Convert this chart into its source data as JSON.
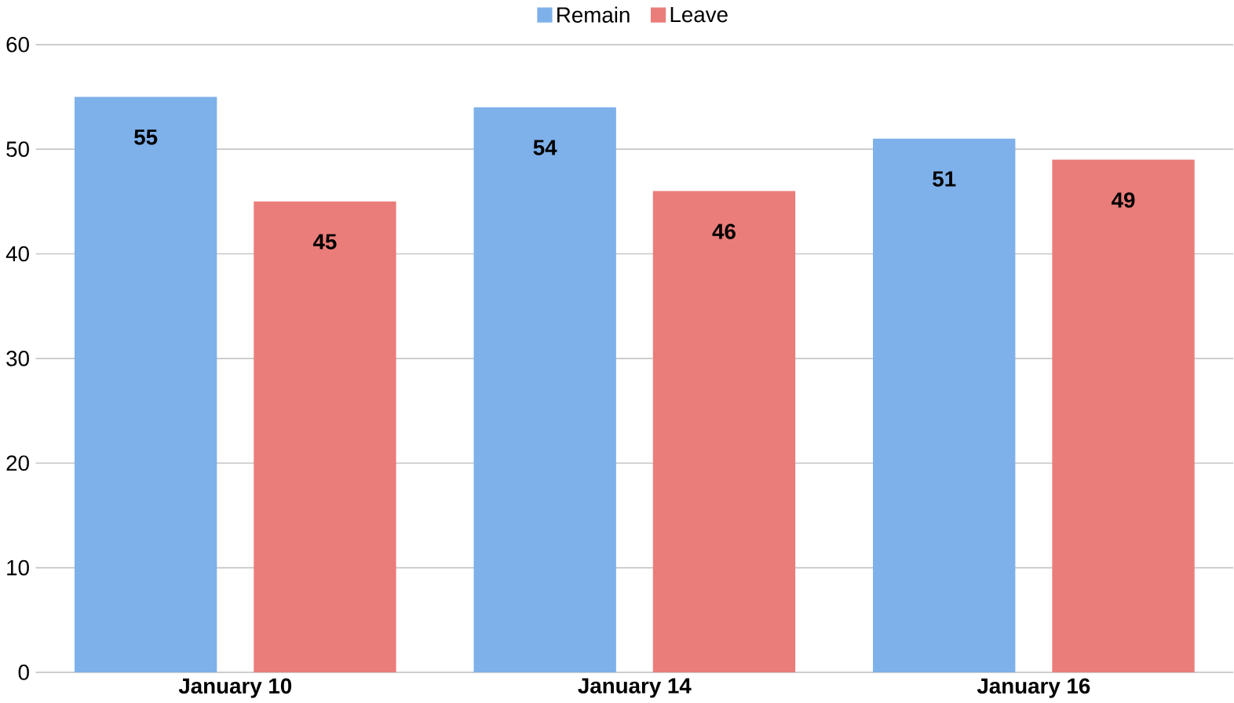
{
  "chart_data": {
    "type": "bar",
    "categories": [
      "January 10",
      "January 14",
      "January 16"
    ],
    "series": [
      {
        "name": "Remain",
        "color": "#7eb0ea",
        "values": [
          55,
          54,
          51
        ]
      },
      {
        "name": "Leave",
        "color": "#ea7d7a",
        "values": [
          45,
          46,
          49
        ]
      }
    ],
    "ylim": [
      0,
      60
    ],
    "yticks": [
      0,
      10,
      20,
      30,
      40,
      50,
      60
    ],
    "grid": "y",
    "legend": "top",
    "data_labels": true
  }
}
